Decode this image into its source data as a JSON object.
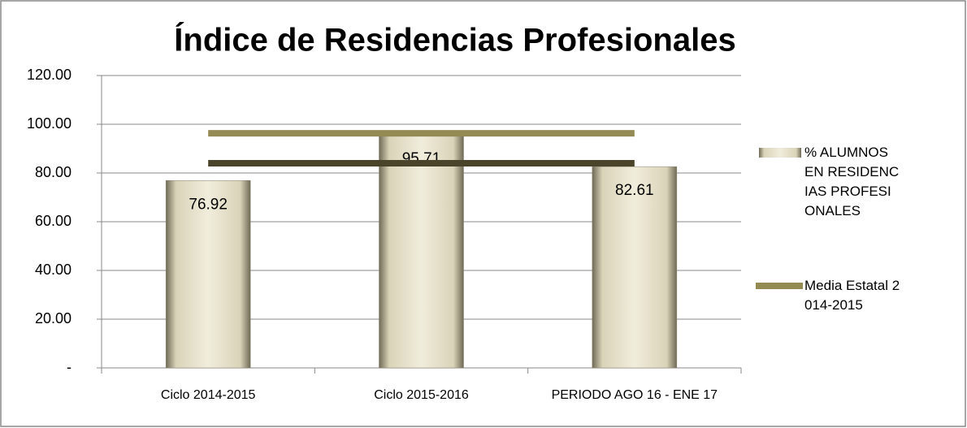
{
  "chart_data": {
    "type": "bar",
    "title": "Índice de Residencias Profesionales",
    "categories": [
      "Ciclo 2014-2015",
      "Ciclo 2015-2016",
      "PERIODO AGO 16 - ENE 17"
    ],
    "series": [
      {
        "type": "bar",
        "name": "% ALUMNOS EN RESIDENCIAS PROFESIONALES",
        "color": "#ede8d0",
        "values": [
          76.92,
          95.71,
          82.61
        ]
      },
      {
        "type": "line",
        "name": "Media Estatal 2014-2015",
        "color": "#948a54",
        "values": [
          96.3,
          96.3,
          96.3
        ]
      },
      {
        "type": "line",
        "color": "#4a452a",
        "values": [
          84,
          84,
          84
        ]
      }
    ],
    "ylim": [
      0,
      120
    ],
    "yticks": [
      {
        "value": 0,
        "label": "-"
      },
      {
        "value": 20,
        "label": "20.00"
      },
      {
        "value": 40,
        "label": "40.00"
      },
      {
        "value": 60,
        "label": "60.00"
      },
      {
        "value": 80,
        "label": "80.00"
      },
      {
        "value": 100,
        "label": "100.00"
      },
      {
        "value": 120,
        "label": "120.00"
      }
    ],
    "grid": true,
    "legend": "right"
  }
}
